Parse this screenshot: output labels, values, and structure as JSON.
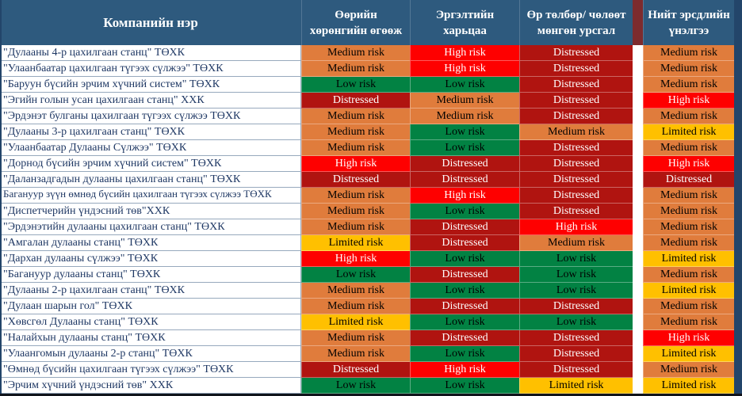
{
  "colors": {
    "header_bg": "#2E5A7E",
    "header_text": "#FFFFFF",
    "name_text": "#1F3864",
    "header_divider": "#7D2B2E",
    "table_border": "#23456A",
    "bottom_border": "#10141B"
  },
  "chart_data": {
    "type": "table",
    "title": "",
    "columns": [
      "Компанийн нэр",
      "Өөрийн хөрөнгийн өгөөж",
      "Эргэлтийн харьцаа",
      "Өр төлбөр/ чөлөөт мөнгөн урсгал",
      "Нийт эрсдлийн үнэлгээ"
    ],
    "risk_levels": {
      "low": {
        "label": "Low risk",
        "bg": "#028243",
        "text": "#000000"
      },
      "limited": {
        "label": "Limited risk",
        "bg": "#FFC000",
        "text": "#000000"
      },
      "medium": {
        "label": "Medium risk",
        "bg": "#E07C3C",
        "text": "#000000"
      },
      "high": {
        "label": "High risk",
        "bg": "#FE0000",
        "text": "#FFFFFF"
      },
      "distressed": {
        "label": "Distressed",
        "bg": "#B01410",
        "text": "#FFFFFF"
      }
    },
    "rows": [
      {
        "company": "\"Дулааны 4-р цахилгаан станц\" ТӨХК",
        "cells": [
          "medium",
          "high",
          "distressed",
          "medium"
        ]
      },
      {
        "company": "\"Улаанбаатар цахилгаан түгээх сүлжээ\" ТӨХК",
        "cells": [
          "medium",
          "high",
          "distressed",
          "medium"
        ]
      },
      {
        "company": "\"Баруун бүсийн эрчим хүчний систем\" ТӨХК",
        "cells": [
          "low",
          "low",
          "distressed",
          "medium"
        ]
      },
      {
        "company": "\"Эгийн голын усан цахилгаан станц\" ХХК",
        "cells": [
          "distressed",
          "medium",
          "distressed",
          "high"
        ]
      },
      {
        "company": "\"Эрдэнэт булганы цахилгаан түгээх сүлжээ ТӨХК",
        "cells": [
          "medium",
          "medium",
          "distressed",
          "medium"
        ]
      },
      {
        "company": "\"Дулааны 3-р цахилгаан станц\" ТӨХК",
        "cells": [
          "medium",
          "low",
          "medium",
          "limited"
        ]
      },
      {
        "company": "\"Улаанбаатар Дулааны Сүлжээ\" ТӨХК",
        "cells": [
          "medium",
          "low",
          "distressed",
          "medium"
        ]
      },
      {
        "company": "\"Дорнод бүсийн эрчим хүчний систем\" ТӨХК",
        "cells": [
          "high",
          "distressed",
          "distressed",
          "high"
        ]
      },
      {
        "company": "\"Даланзадгадын дулааны цахилгаан станц\" ТӨХК",
        "cells": [
          "distressed",
          "distressed",
          "distressed",
          "distressed"
        ]
      },
      {
        "company": "Багануур зүүн өмнөд бүсийн цахилгаан түгээх сүлжээ ТӨХК",
        "two_line": true,
        "cells": [
          "medium",
          "high",
          "distressed",
          "medium"
        ]
      },
      {
        "company": "\"Диспетчерийн үндэсний төв\"ХХК",
        "cells": [
          "medium",
          "low",
          "distressed",
          "medium"
        ]
      },
      {
        "company": "\"Эрдэнэтийн дулааны цахилгаан станц\" ТӨХК",
        "cells": [
          "medium",
          "distressed",
          "high",
          "medium"
        ]
      },
      {
        "company": "\"Амгалан дулааны станц\" ТӨХК",
        "cells": [
          "limited",
          "distressed",
          "medium",
          "medium"
        ]
      },
      {
        "company": "\"Дархан дулааны сүлжээ\" ТӨХК",
        "cells": [
          "high",
          "low",
          "low",
          "limited"
        ]
      },
      {
        "company": "\"Багануур дулааны станц\" ТӨХК",
        "cells": [
          "low",
          "distressed",
          "low",
          "medium"
        ]
      },
      {
        "company": "\"Дулааны 2-р цахилгаан станц\" ТӨХК",
        "cells": [
          "medium",
          "low",
          "low",
          "limited"
        ]
      },
      {
        "company": "\"Дулаан шарын гол\" ТӨХК",
        "cells": [
          "medium",
          "distressed",
          "distressed",
          "medium"
        ]
      },
      {
        "company": "\"Хөвсгөл Дулааны станц\" ТӨХК",
        "cells": [
          "limited",
          "low",
          "low",
          "medium"
        ]
      },
      {
        "company": "\"Налайхын дулааны станц\" ТӨХК",
        "cells": [
          "medium",
          "distressed",
          "distressed",
          "high"
        ]
      },
      {
        "company": "\"Улаангомын дулааны 2-р станц\" ТӨХК",
        "cells": [
          "medium",
          "low",
          "distressed",
          "limited"
        ]
      },
      {
        "company": "\"Өмнөд бүсийн цахилгаан түгээх сүлжээ\" ТӨХК",
        "cells": [
          "distressed",
          "high",
          "distressed",
          "medium"
        ]
      },
      {
        "company": "\"Эрчим хүчний үндэсний төв\" ХХК",
        "cells": [
          "low",
          "low",
          "limited",
          "limited"
        ]
      }
    ]
  }
}
